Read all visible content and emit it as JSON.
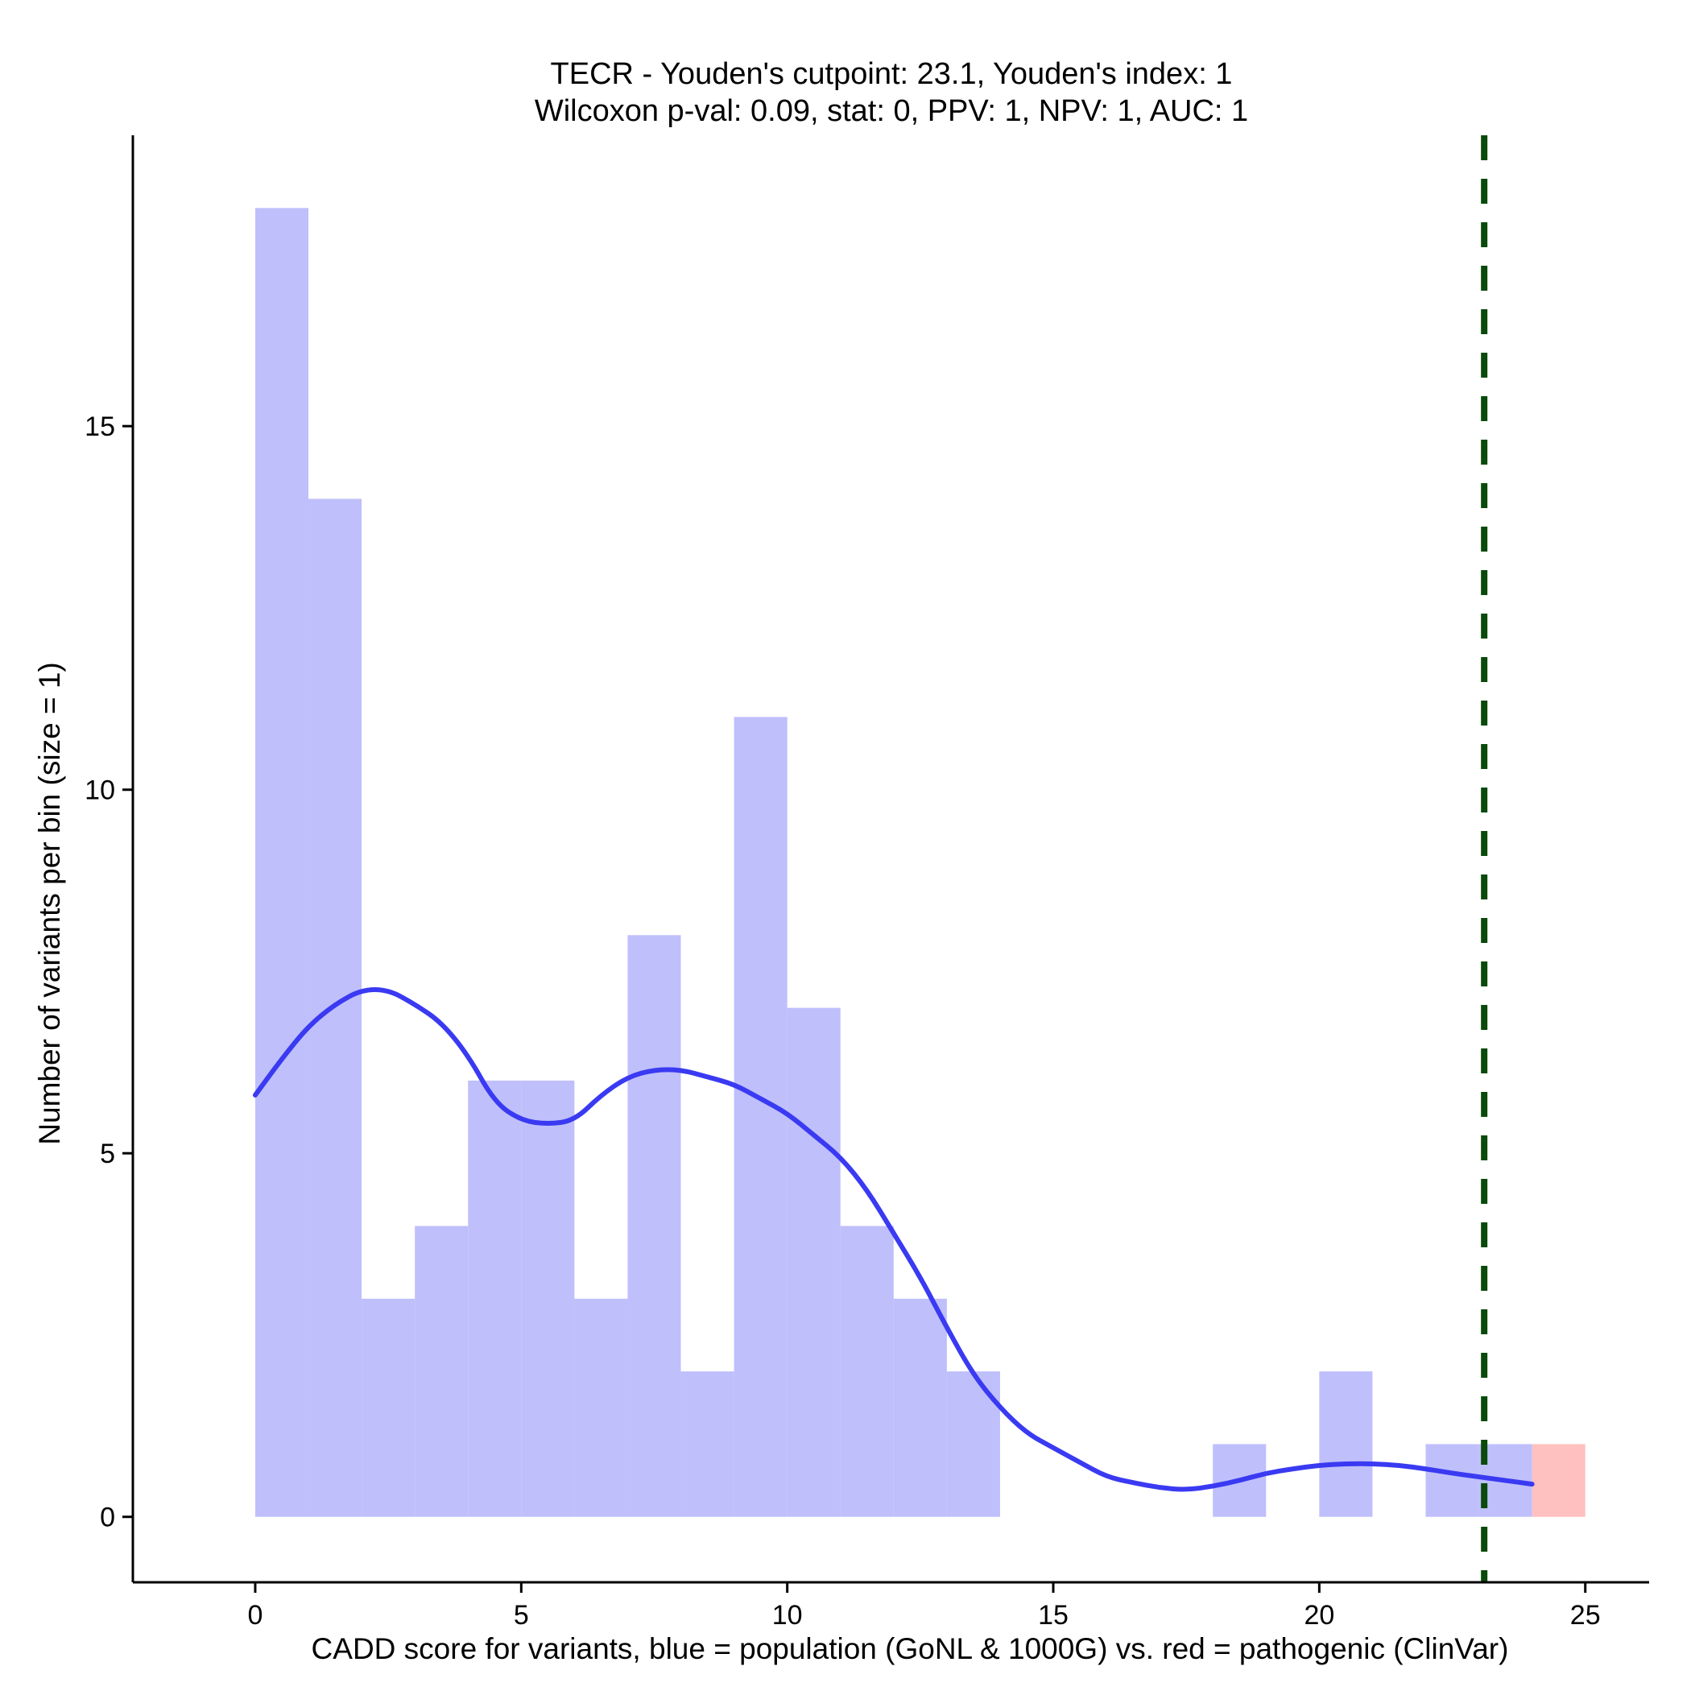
{
  "chart_data": {
    "type": "bar",
    "title": "TECR - Youden's cutpoint: 23.1, Youden's index: 1",
    "subtitle": "Wilcoxon p-val: 0.09, stat: 0, PPV: 1, NPV: 1, AUC: 1",
    "xlabel": "CADD score for variants, blue = population (GoNL & 1000G) vs. red = pathogenic (ClinVar)",
    "ylabel": "Number of variants per bin (size = 1)",
    "xlim": [
      -2.3,
      26.2
    ],
    "ylim": [
      -0.9,
      19
    ],
    "xticks": [
      0,
      5,
      10,
      15,
      20,
      25
    ],
    "yticks": [
      0,
      5,
      10,
      15
    ],
    "bin_size": 1,
    "series": [
      {
        "name": "population (GoNL & 1000G)",
        "color": "#bfbffc",
        "bins": [
          {
            "x0": 0,
            "x1": 1,
            "count": 18
          },
          {
            "x0": 1,
            "x1": 2,
            "count": 14
          },
          {
            "x0": 2,
            "x1": 3,
            "count": 3
          },
          {
            "x0": 3,
            "x1": 4,
            "count": 4
          },
          {
            "x0": 4,
            "x1": 5,
            "count": 6
          },
          {
            "x0": 5,
            "x1": 6,
            "count": 6
          },
          {
            "x0": 6,
            "x1": 7,
            "count": 3
          },
          {
            "x0": 7,
            "x1": 8,
            "count": 8
          },
          {
            "x0": 8,
            "x1": 9,
            "count": 2
          },
          {
            "x0": 9,
            "x1": 10,
            "count": 11
          },
          {
            "x0": 10,
            "x1": 11,
            "count": 7
          },
          {
            "x0": 11,
            "x1": 12,
            "count": 4
          },
          {
            "x0": 12,
            "x1": 13,
            "count": 3
          },
          {
            "x0": 13,
            "x1": 14,
            "count": 2
          },
          {
            "x0": 18,
            "x1": 19,
            "count": 1
          },
          {
            "x0": 20,
            "x1": 21,
            "count": 2
          },
          {
            "x0": 22,
            "x1": 23,
            "count": 1
          },
          {
            "x0": 23,
            "x1": 24,
            "count": 1
          }
        ]
      },
      {
        "name": "pathogenic (ClinVar)",
        "color": "#ffc0c0",
        "bins": [
          {
            "x0": 24,
            "x1": 25,
            "count": 1
          }
        ]
      }
    ],
    "density_curve": {
      "name": "population density",
      "color": "#3a3af2",
      "points": [
        [
          0,
          5.8
        ],
        [
          0.5,
          6.3
        ],
        [
          1,
          6.75
        ],
        [
          1.5,
          7.05
        ],
        [
          2,
          7.25
        ],
        [
          2.5,
          7.25
        ],
        [
          3,
          7.05
        ],
        [
          3.5,
          6.8
        ],
        [
          4,
          6.35
        ],
        [
          4.5,
          5.7
        ],
        [
          5,
          5.45
        ],
        [
          5.5,
          5.4
        ],
        [
          6,
          5.45
        ],
        [
          6.5,
          5.8
        ],
        [
          7,
          6.05
        ],
        [
          7.5,
          6.15
        ],
        [
          8,
          6.15
        ],
        [
          8.5,
          6.05
        ],
        [
          9,
          5.95
        ],
        [
          9.5,
          5.75
        ],
        [
          10,
          5.55
        ],
        [
          10.5,
          5.25
        ],
        [
          11,
          4.95
        ],
        [
          11.5,
          4.5
        ],
        [
          12,
          3.9
        ],
        [
          12.5,
          3.3
        ],
        [
          13,
          2.6
        ],
        [
          13.5,
          1.95
        ],
        [
          14,
          1.5
        ],
        [
          14.5,
          1.15
        ],
        [
          15,
          0.95
        ],
        [
          15.5,
          0.75
        ],
        [
          16,
          0.55
        ],
        [
          16.5,
          0.47
        ],
        [
          17,
          0.4
        ],
        [
          17.5,
          0.37
        ],
        [
          18,
          0.42
        ],
        [
          18.5,
          0.5
        ],
        [
          19,
          0.6
        ],
        [
          19.5,
          0.66
        ],
        [
          20,
          0.71
        ],
        [
          20.5,
          0.73
        ],
        [
          21,
          0.73
        ],
        [
          21.5,
          0.71
        ],
        [
          22,
          0.66
        ],
        [
          22.5,
          0.6
        ],
        [
          23,
          0.55
        ],
        [
          23.5,
          0.5
        ],
        [
          24,
          0.45
        ]
      ]
    },
    "cutpoint": {
      "value": 23.1,
      "color": "#0a4a0a",
      "style": "dashed"
    }
  }
}
